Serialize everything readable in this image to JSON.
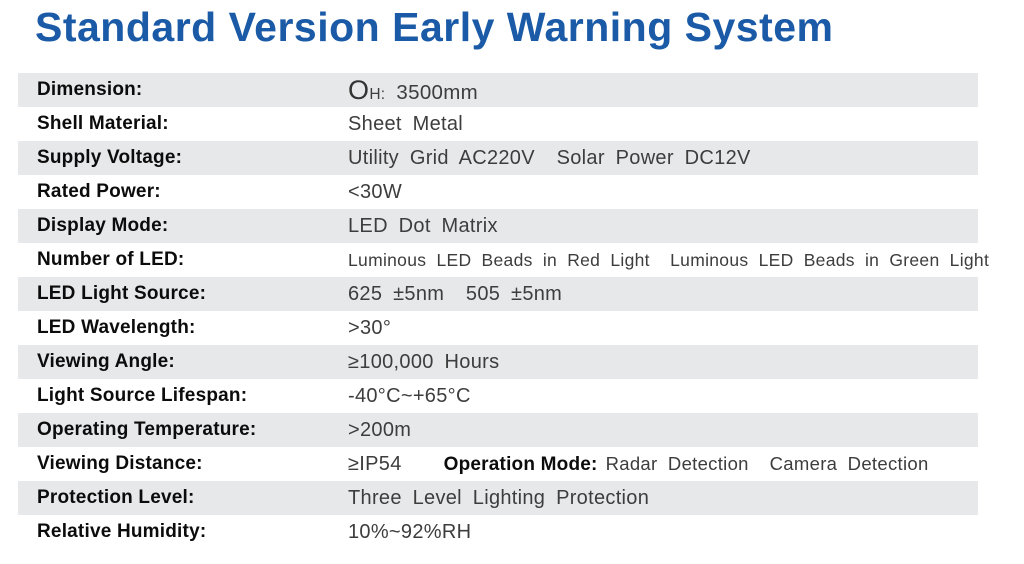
{
  "title": "Standard Version Early Warning System",
  "colors": {
    "title": "#1a5aa6",
    "row_stripe": "#e7e8ea",
    "label_text": "#0c0c0c",
    "value_text": "#3d3d3d"
  },
  "table": {
    "rows": [
      {
        "label": "Dimension:",
        "value_symbol": "O",
        "value_sub": "H:",
        "value_rest": " 3500mm",
        "striped": true
      },
      {
        "label": "Shell Material:",
        "value": "Sheet Metal",
        "striped": false
      },
      {
        "label": "Supply Voltage:",
        "value": "Utility Grid AC220V  Solar Power DC12V",
        "striped": true
      },
      {
        "label": "Rated Power:",
        "value": "<30W",
        "striped": false
      },
      {
        "label": "Display Mode:",
        "value": "LED Dot Matrix",
        "striped": true
      },
      {
        "label": "Number of LED:",
        "value": "Luminous LED Beads in Red Light  Luminous LED Beads in Green Light",
        "small": true,
        "striped": false
      },
      {
        "label": "LED Light Source:",
        "value": "625 ±5nm  505 ±5nm",
        "striped": true
      },
      {
        "label": "LED Wavelength:",
        "value": ">30°",
        "striped": false
      },
      {
        "label": "Viewing Angle:",
        "value": "≥100,000 Hours",
        "striped": true
      },
      {
        "label": "Light Source Lifespan:",
        "value": "-40°C~+65°C",
        "striped": false
      },
      {
        "label": "Operating Temperature:",
        "value": ">200m",
        "striped": true
      },
      {
        "label": "Viewing Distance:",
        "value": "≥IP54",
        "inline_label": "Operation Mode:",
        "inline_value": "Radar Detection  Camera Detection",
        "striped": false
      },
      {
        "label": "Protection Level:",
        "value": "Three Level Lighting Protection",
        "striped": true
      },
      {
        "label": "Relative Humidity:",
        "value": "10%~92%RH",
        "striped": false
      }
    ]
  }
}
